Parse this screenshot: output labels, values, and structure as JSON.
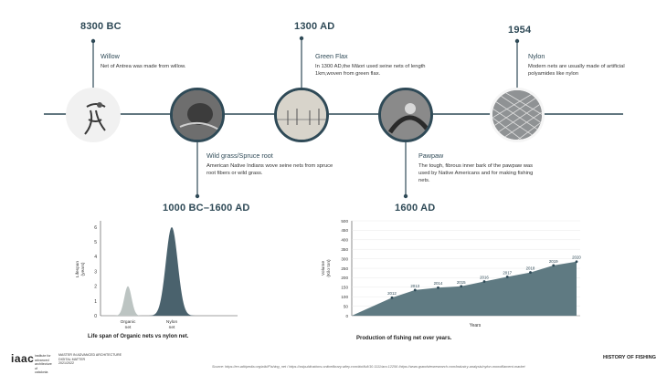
{
  "timeline": [
    {
      "year": "8300 BC",
      "title": "Willow",
      "desc": "Net of Antrea was made from willow.",
      "icon": "willow-artifact-image"
    },
    {
      "year": "1000 BC–1600 AD",
      "title": "Wild grass/Spruce root",
      "desc": "American Native Indians wove seine nets from spruce root fibers or wild grass.",
      "icon": "spruce-root-net-image"
    },
    {
      "year": "1300 AD",
      "title": "Green Flax",
      "desc": "In 1300 AD,the Māori used seine nets of length 1km,woven from green flax.",
      "icon": "green-flax-fishing-image"
    },
    {
      "year": "1600 AD",
      "title": "Pawpaw",
      "desc": "The tough, fibrous inner bark of the pawpaw was used by Native Americans and for making fishing nets.",
      "icon": "pawpaw-net-image"
    },
    {
      "year": "1954",
      "title": "Nylon",
      "desc": "Modern nets are usually made of artificial polyamides like nylon",
      "icon": "nylon-net-image"
    }
  ],
  "chart_data": [
    {
      "type": "area",
      "ylabel": "Lifespan\n(years)",
      "yticks": [
        0,
        1,
        2,
        3,
        4,
        5,
        6
      ],
      "ylim": [
        0,
        6.3
      ],
      "categories": [
        "Organic\nnet",
        "Nylon\nnet"
      ],
      "series": [
        {
          "values": [
            2,
            6
          ]
        }
      ],
      "caption": "Life span of Organic nets vs nylon net."
    },
    {
      "type": "area",
      "xlabel": "Years",
      "ylabel": "Volume\n(Kilo ton)",
      "ylim": [
        0,
        500
      ],
      "yticks": [
        0,
        50,
        100,
        150,
        200,
        250,
        300,
        350,
        400,
        450,
        500
      ],
      "x": [
        "2012",
        "2013",
        "2014",
        "2015",
        "2016",
        "2017",
        "2018",
        "2019",
        "2020"
      ],
      "values": [
        95,
        135,
        148,
        155,
        180,
        205,
        228,
        265,
        285
      ],
      "caption": "Production of fishing net over years."
    }
  ],
  "footer": {
    "logo": "iaac",
    "logo_sub": "institute for advanced architecture of catalonia",
    "program": "MASTER IN ADVANCED ARCHITECTURE",
    "course": "DIGITAL MATTER",
    "term": "2021/2022",
    "page_title": "HISTORY OF  FISHING",
    "source": "Source: https://en.wikipedia.org/wiki/Fishing_net / https://zslpublications.onlinelibrary.wiley.com/doi/full/10.1111/acv.12256 /https://www.grandviewresearch.com/industry-analysis/nylon-monofilament-market"
  },
  "colors": {
    "accent": "#2f4a57",
    "organic": "#bcc4c2",
    "nylon": "#4a626d",
    "area": "#5f7a82"
  }
}
